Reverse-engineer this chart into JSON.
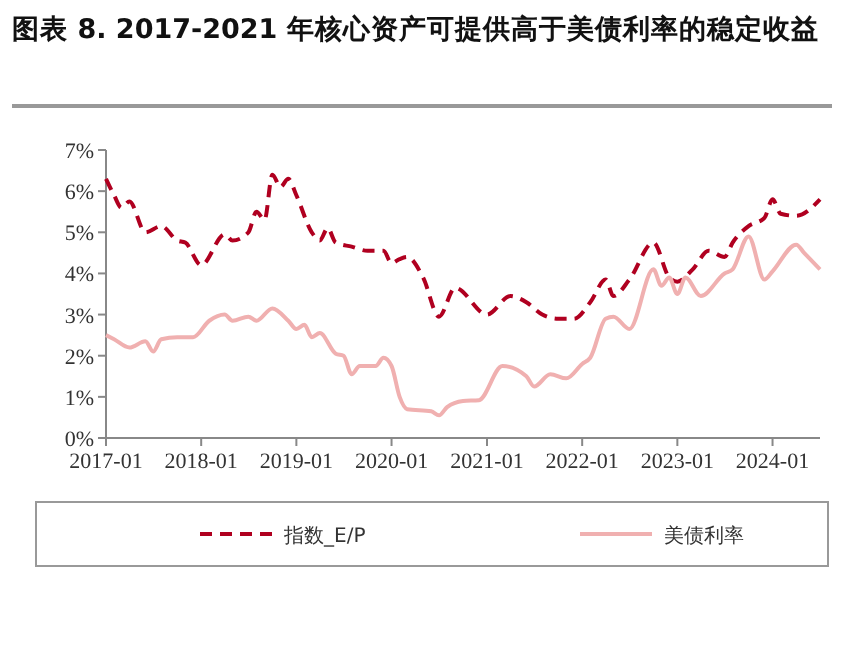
{
  "chart_data": {
    "type": "line",
    "title": "图表 8. 2017-2021 年核心资产可提供高于美债利率的稳定收益",
    "xlim": [
      "2017-01",
      "2024-07"
    ],
    "xticks": [
      {
        "value": "2017-01",
        "label": "2017-01"
      },
      {
        "value": "2018-01",
        "label": "2018-01"
      },
      {
        "value": "2019-01",
        "label": "2019-01"
      },
      {
        "value": "2020-01",
        "label": "2020-01"
      },
      {
        "value": "2021-01",
        "label": "2021-01"
      },
      {
        "value": "2022-01",
        "label": "2022-01"
      },
      {
        "value": "2023-01",
        "label": "2023-01"
      },
      {
        "value": "2024-01",
        "label": "2024-01"
      }
    ],
    "ylim": [
      0,
      7
    ],
    "yticks": [
      {
        "value": 0,
        "label": "0%"
      },
      {
        "value": 1,
        "label": "1%"
      },
      {
        "value": 2,
        "label": "2%"
      },
      {
        "value": 3,
        "label": "3%"
      },
      {
        "value": 4,
        "label": "4%"
      },
      {
        "value": 5,
        "label": "5%"
      },
      {
        "value": 6,
        "label": "6%"
      },
      {
        "value": 7,
        "label": "7%"
      }
    ],
    "grid": false,
    "legend": "bottom",
    "series": [
      {
        "name": "指数_E/P",
        "color": "#b00020",
        "line_style": "dashed",
        "x": [
          "2017-01",
          "2017-02",
          "2017-03",
          "2017-04",
          "2017-06",
          "2017-08",
          "2017-10",
          "2017-11",
          "2018-01",
          "2018-04",
          "2018-05",
          "2018-07",
          "2018-08",
          "2018-09",
          "2018-10",
          "2018-11",
          "2018-12",
          "2019-01",
          "2019-03",
          "2019-04",
          "2019-05",
          "2019-06",
          "2019-08",
          "2019-10",
          "2019-12",
          "2020-01",
          "2020-02",
          "2020-03",
          "2020-05",
          "2020-07",
          "2020-09",
          "2021-01",
          "2021-04",
          "2021-06",
          "2021-08",
          "2021-10",
          "2021-12",
          "2022-02",
          "2022-04",
          "2022-05",
          "2022-07",
          "2022-10",
          "2022-12",
          "2023-01",
          "2023-03",
          "2023-05",
          "2023-07",
          "2023-08",
          "2023-10",
          "2023-12",
          "2024-01",
          "2024-02",
          "2024-04",
          "2024-07"
        ],
        "values": [
          6.3,
          5.9,
          5.6,
          5.75,
          5.0,
          5.15,
          4.8,
          4.75,
          4.2,
          4.95,
          4.8,
          5.0,
          5.5,
          5.3,
          6.4,
          6.1,
          6.3,
          5.9,
          5.0,
          4.8,
          5.1,
          4.75,
          4.65,
          4.55,
          4.55,
          4.25,
          4.35,
          4.4,
          3.9,
          2.95,
          3.65,
          3.0,
          3.45,
          3.3,
          3.0,
          2.9,
          2.9,
          3.3,
          3.85,
          3.45,
          3.85,
          4.75,
          3.9,
          3.8,
          4.1,
          4.55,
          4.4,
          4.75,
          5.15,
          5.35,
          5.8,
          5.45,
          5.4,
          5.8
        ]
      },
      {
        "name": "美债利率",
        "color": "#f0b0b0",
        "line_style": "solid",
        "x": [
          "2017-01",
          "2017-02",
          "2017-04",
          "2017-06",
          "2017-07",
          "2017-08",
          "2017-10",
          "2017-12",
          "2018-02",
          "2018-04",
          "2018-05",
          "2018-07",
          "2018-08",
          "2018-10",
          "2018-12",
          "2019-01",
          "2019-02",
          "2019-03",
          "2019-04",
          "2019-06",
          "2019-07",
          "2019-08",
          "2019-09",
          "2019-11",
          "2019-12",
          "2020-01",
          "2020-02",
          "2020-03",
          "2020-06",
          "2020-07",
          "2020-08",
          "2020-10",
          "2020-12",
          "2021-03",
          "2021-06",
          "2021-07",
          "2021-09",
          "2021-11",
          "2022-01",
          "2022-02",
          "2022-04",
          "2022-05",
          "2022-07",
          "2022-10",
          "2022-11",
          "2022-12",
          "2023-01",
          "2023-02",
          "2023-04",
          "2023-07",
          "2023-08",
          "2023-10",
          "2023-12",
          "2024-01",
          "2024-04",
          "2024-05",
          "2024-07"
        ],
        "values": [
          2.5,
          2.4,
          2.2,
          2.35,
          2.1,
          2.4,
          2.45,
          2.45,
          2.85,
          3.0,
          2.85,
          2.95,
          2.85,
          3.15,
          2.85,
          2.65,
          2.75,
          2.45,
          2.55,
          2.05,
          2.0,
          1.55,
          1.75,
          1.75,
          1.95,
          1.75,
          1.0,
          0.7,
          0.65,
          0.55,
          0.75,
          0.9,
          0.92,
          1.75,
          1.5,
          1.25,
          1.55,
          1.45,
          1.8,
          1.95,
          2.9,
          2.95,
          2.65,
          4.1,
          3.7,
          3.9,
          3.5,
          3.9,
          3.45,
          4.0,
          4.1,
          4.9,
          3.85,
          4.05,
          4.7,
          4.5,
          4.1
        ]
      }
    ]
  }
}
